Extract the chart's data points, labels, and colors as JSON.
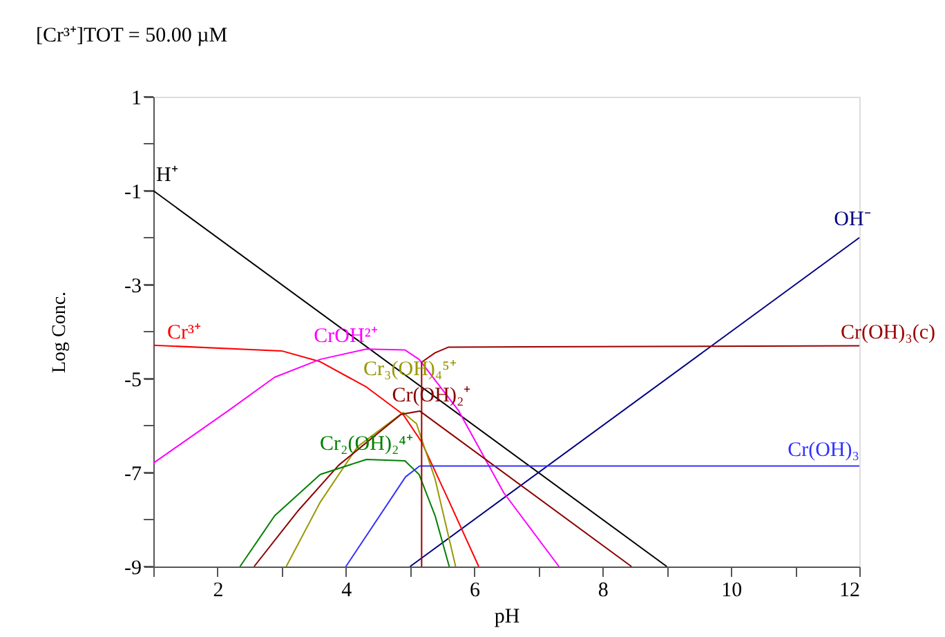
{
  "chart_data": {
    "type": "line",
    "title": "[Cr³⁺]TOT =   50.00 µM",
    "xlabel": "pH",
    "ylabel": "Log Conc.",
    "xlim": [
      1,
      12
    ],
    "ylim": [
      -9,
      1
    ],
    "xticks": [
      {
        "value": 1,
        "label": null
      },
      2,
      {
        "value": 3,
        "label": null
      },
      4,
      {
        "value": 5,
        "label": null
      },
      6,
      {
        "value": 7,
        "label": null
      },
      8,
      {
        "value": 9,
        "label": null
      },
      10,
      {
        "value": 11,
        "label": null
      },
      12
    ],
    "yticks": [
      -9,
      {
        "value": -8,
        "label": null
      },
      -7,
      {
        "value": -6,
        "label": null
      },
      -5,
      {
        "value": -4,
        "label": null
      },
      -3,
      {
        "value": -2,
        "label": null
      },
      -1,
      {
        "value": 0,
        "label": null
      },
      1
    ],
    "grid": false,
    "legend": false,
    "marker": "none",
    "line_style": "solid",
    "series": [
      {
        "name": "H⁺",
        "color": "#000000",
        "x": [
          1,
          9
        ],
        "values": [
          -1,
          -9
        ]
      },
      {
        "name": "OH⁻",
        "color": "#000080",
        "x": [
          5,
          12
        ],
        "values": [
          -9,
          -2
        ]
      },
      {
        "name": "Cr³⁺",
        "color": "#ff0000",
        "x": [
          1,
          3.0,
          3.6,
          4.32,
          4.89,
          5.18,
          5.61,
          6.07
        ],
        "values": [
          -4.29,
          -4.41,
          -4.64,
          -5.18,
          -5.76,
          -6.35,
          -7.62,
          -9
        ]
      },
      {
        "name": "CrOH²⁺",
        "color": "#ff00ff",
        "x": [
          1,
          2.18,
          2.89,
          3.6,
          4.32,
          4.92,
          5.14,
          5.75,
          6.46,
          7.32
        ],
        "values": [
          -6.8,
          -5.67,
          -4.97,
          -4.59,
          -4.37,
          -4.39,
          -4.59,
          -5.67,
          -7.43,
          -9
        ]
      },
      {
        "name": "Cr₃(OH)₄⁵⁺",
        "color": "#999900",
        "x": [
          3.07,
          3.6,
          4.18,
          4.89,
          5.1,
          5.39,
          5.71
        ],
        "values": [
          -9,
          -7.63,
          -6.45,
          -5.72,
          -5.96,
          -7.14,
          -9
        ]
      },
      {
        "name": "Cr(OH)₂⁺",
        "color": "#8b0000",
        "x": [
          2.57,
          3.25,
          3.89,
          4.86,
          5.15,
          8.45
        ],
        "values": [
          -9,
          -7.82,
          -6.84,
          -5.76,
          -5.69,
          -9
        ]
      },
      {
        "name": "Cr₂(OH)₂⁴⁺",
        "color": "#008000",
        "x": [
          2.35,
          2.89,
          3.6,
          4.32,
          4.92,
          5.14,
          5.39,
          5.61
        ],
        "values": [
          -9,
          -7.92,
          -7.04,
          -6.72,
          -6.75,
          -7.04,
          -7.92,
          -9
        ]
      },
      {
        "name": "Cr(OH)₃",
        "color": "#3333ff",
        "x": [
          4.0,
          4.93,
          5.15,
          12
        ],
        "values": [
          -9,
          -7.09,
          -6.86,
          -6.86
        ]
      },
      {
        "name": "Cr(OH)₃(c)",
        "color": "#990000",
        "x": [
          5.18,
          5.18,
          5.39,
          5.6,
          12
        ],
        "values": [
          -9,
          -4.65,
          -4.45,
          -4.33,
          -4.3
        ]
      }
    ]
  }
}
